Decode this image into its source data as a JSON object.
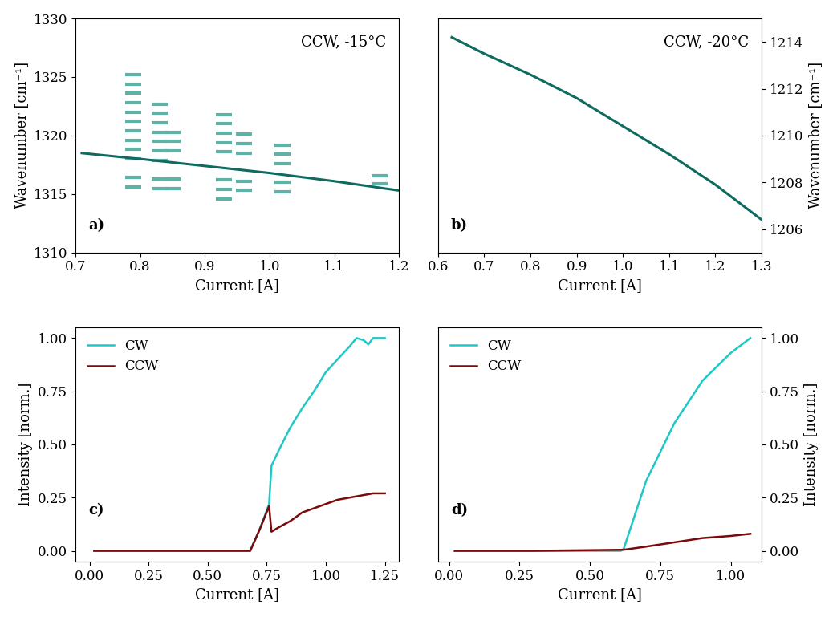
{
  "chart_data": [
    {
      "type": "line",
      "xlabel": "Current [A]",
      "ylabel": "Wavenumber [cm⁻¹]",
      "xlim": [
        0.7,
        1.2
      ],
      "ylim": [
        1310,
        1330
      ],
      "xticks": [
        0.7,
        0.8,
        0.9,
        1.0,
        1.1,
        1.2
      ],
      "yticks": [
        1310,
        1315,
        1320,
        1325,
        1330
      ],
      "annotations": [
        "CCW, -15°C",
        "a)"
      ],
      "series": [
        {
          "type": "scatter",
          "color": "#5fb3a6",
          "marker": "_",
          "x": [
            0.79,
            0.79,
            0.79,
            0.79,
            0.79,
            0.79,
            0.79,
            0.79,
            0.79,
            0.79,
            0.79,
            0.79,
            0.83,
            0.83,
            0.83,
            0.83,
            0.83,
            0.83,
            0.83,
            0.83,
            0.83,
            0.85,
            0.85,
            0.85,
            0.85,
            0.85,
            0.93,
            0.93,
            0.93,
            0.93,
            0.93,
            0.93,
            0.93,
            0.93,
            0.96,
            0.96,
            0.96,
            0.96,
            0.96,
            1.02,
            1.02,
            1.02,
            1.02,
            1.02,
            1.17,
            1.17
          ],
          "values": [
            1315.6,
            1316.4,
            1318.0,
            1318.8,
            1319.6,
            1320.4,
            1321.2,
            1322.0,
            1322.8,
            1323.6,
            1324.4,
            1325.2,
            1315.5,
            1316.3,
            1317.9,
            1318.7,
            1319.5,
            1320.3,
            1321.1,
            1321.9,
            1322.7,
            1315.5,
            1316.3,
            1318.7,
            1319.5,
            1320.3,
            1314.6,
            1315.4,
            1316.2,
            1318.6,
            1319.4,
            1320.2,
            1321.0,
            1321.8,
            1315.3,
            1316.1,
            1318.5,
            1319.3,
            1320.1,
            1315.2,
            1316.0,
            1317.6,
            1318.4,
            1319.2,
            1315.9,
            1316.6
          ]
        },
        {
          "type": "line",
          "color": "#0f6b60",
          "x": [
            0.71,
            0.8,
            0.9,
            1.0,
            1.1,
            1.2
          ],
          "values": [
            1318.5,
            1318.0,
            1317.4,
            1316.8,
            1316.1,
            1315.3
          ]
        }
      ]
    },
    {
      "type": "line",
      "xlabel": "Current [A]",
      "ylabel": "Wavenumber [cm⁻¹]",
      "xlim": [
        0.6,
        1.3
      ],
      "ylim": [
        1205,
        1215
      ],
      "xticks": [
        0.6,
        0.7,
        0.8,
        0.9,
        1.0,
        1.1,
        1.2,
        1.3
      ],
      "yticks": [
        1206,
        1208,
        1210,
        1212,
        1214
      ],
      "annotations": [
        "CCW, -20°C",
        "b)"
      ],
      "series": [
        {
          "type": "line",
          "color": "#0f6b60",
          "x": [
            0.63,
            0.7,
            0.8,
            0.9,
            1.0,
            1.1,
            1.2,
            1.3
          ],
          "values": [
            1214.2,
            1213.5,
            1212.6,
            1211.6,
            1210.4,
            1209.2,
            1207.9,
            1206.4
          ]
        }
      ]
    },
    {
      "type": "line",
      "xlabel": "Current [A]",
      "ylabel": "Intensity [norm.]",
      "xlim": [
        -0.06,
        1.31
      ],
      "ylim": [
        -0.05,
        1.05
      ],
      "xticks": [
        {
          "value": 0,
          "label": "0.00"
        },
        {
          "value": 0.25,
          "label": "0.25"
        },
        {
          "value": 0.5,
          "label": "0.50"
        },
        {
          "value": 0.75,
          "label": "0.75"
        },
        {
          "value": 1,
          "label": "1.00"
        },
        {
          "value": 1.25,
          "label": "1.25"
        }
      ],
      "yticks": [
        {
          "value": 0,
          "label": "0.00"
        },
        {
          "value": 0.25,
          "label": "0.25"
        },
        {
          "value": 0.5,
          "label": "0.50"
        },
        {
          "value": 0.75,
          "label": "0.75"
        },
        {
          "value": 1,
          "label": "1.00"
        }
      ],
      "legend": "upper left",
      "annotations": [
        "c)"
      ],
      "series": [
        {
          "name": "CW",
          "color": "#1fc7c7",
          "x": [
            0.02,
            0.3,
            0.6,
            0.68,
            0.72,
            0.76,
            0.77,
            0.8,
            0.85,
            0.9,
            0.95,
            1.0,
            1.05,
            1.1,
            1.13,
            1.16,
            1.18,
            1.2,
            1.25
          ],
          "values": [
            0,
            0,
            0,
            0,
            0.1,
            0.22,
            0.4,
            0.47,
            0.58,
            0.67,
            0.75,
            0.84,
            0.9,
            0.96,
            1.0,
            0.99,
            0.97,
            1.0,
            1.0
          ]
        },
        {
          "name": "CCW",
          "color": "#7a0a0a",
          "x": [
            0.02,
            0.3,
            0.6,
            0.68,
            0.72,
            0.76,
            0.77,
            0.8,
            0.85,
            0.9,
            0.95,
            1.0,
            1.05,
            1.1,
            1.15,
            1.2,
            1.25
          ],
          "values": [
            0,
            0,
            0,
            0,
            0.1,
            0.21,
            0.09,
            0.11,
            0.14,
            0.18,
            0.2,
            0.22,
            0.24,
            0.25,
            0.26,
            0.27,
            0.27
          ]
        }
      ]
    },
    {
      "type": "line",
      "xlabel": "Current [A]",
      "ylabel": "Intensity [norm.]",
      "xlim": [
        -0.04,
        1.11
      ],
      "ylim": [
        -0.05,
        1.05
      ],
      "xticks": [
        {
          "value": 0,
          "label": "0.00"
        },
        {
          "value": 0.25,
          "label": "0.25"
        },
        {
          "value": 0.5,
          "label": "0.50"
        },
        {
          "value": 0.75,
          "label": "0.75"
        },
        {
          "value": 1,
          "label": "1.00"
        }
      ],
      "yticks": [
        {
          "value": 0,
          "label": "0.00"
        },
        {
          "value": 0.25,
          "label": "0.25"
        },
        {
          "value": 0.5,
          "label": "0.50"
        },
        {
          "value": 0.75,
          "label": "0.75"
        },
        {
          "value": 1,
          "label": "1.00"
        }
      ],
      "legend": "upper left",
      "annotations": [
        "d)"
      ],
      "series": [
        {
          "name": "CW",
          "color": "#1fc7c7",
          "x": [
            0.02,
            0.3,
            0.61,
            0.62,
            0.7,
            0.8,
            0.9,
            1.0,
            1.07
          ],
          "values": [
            0,
            0,
            0,
            0.01,
            0.33,
            0.6,
            0.8,
            0.93,
            1.0
          ]
        },
        {
          "name": "CCW",
          "color": "#7a0a0a",
          "x": [
            0.02,
            0.3,
            0.62,
            0.7,
            0.8,
            0.9,
            1.0,
            1.07
          ],
          "values": [
            0,
            0,
            0.005,
            0.02,
            0.04,
            0.06,
            0.07,
            0.08
          ]
        }
      ]
    }
  ]
}
